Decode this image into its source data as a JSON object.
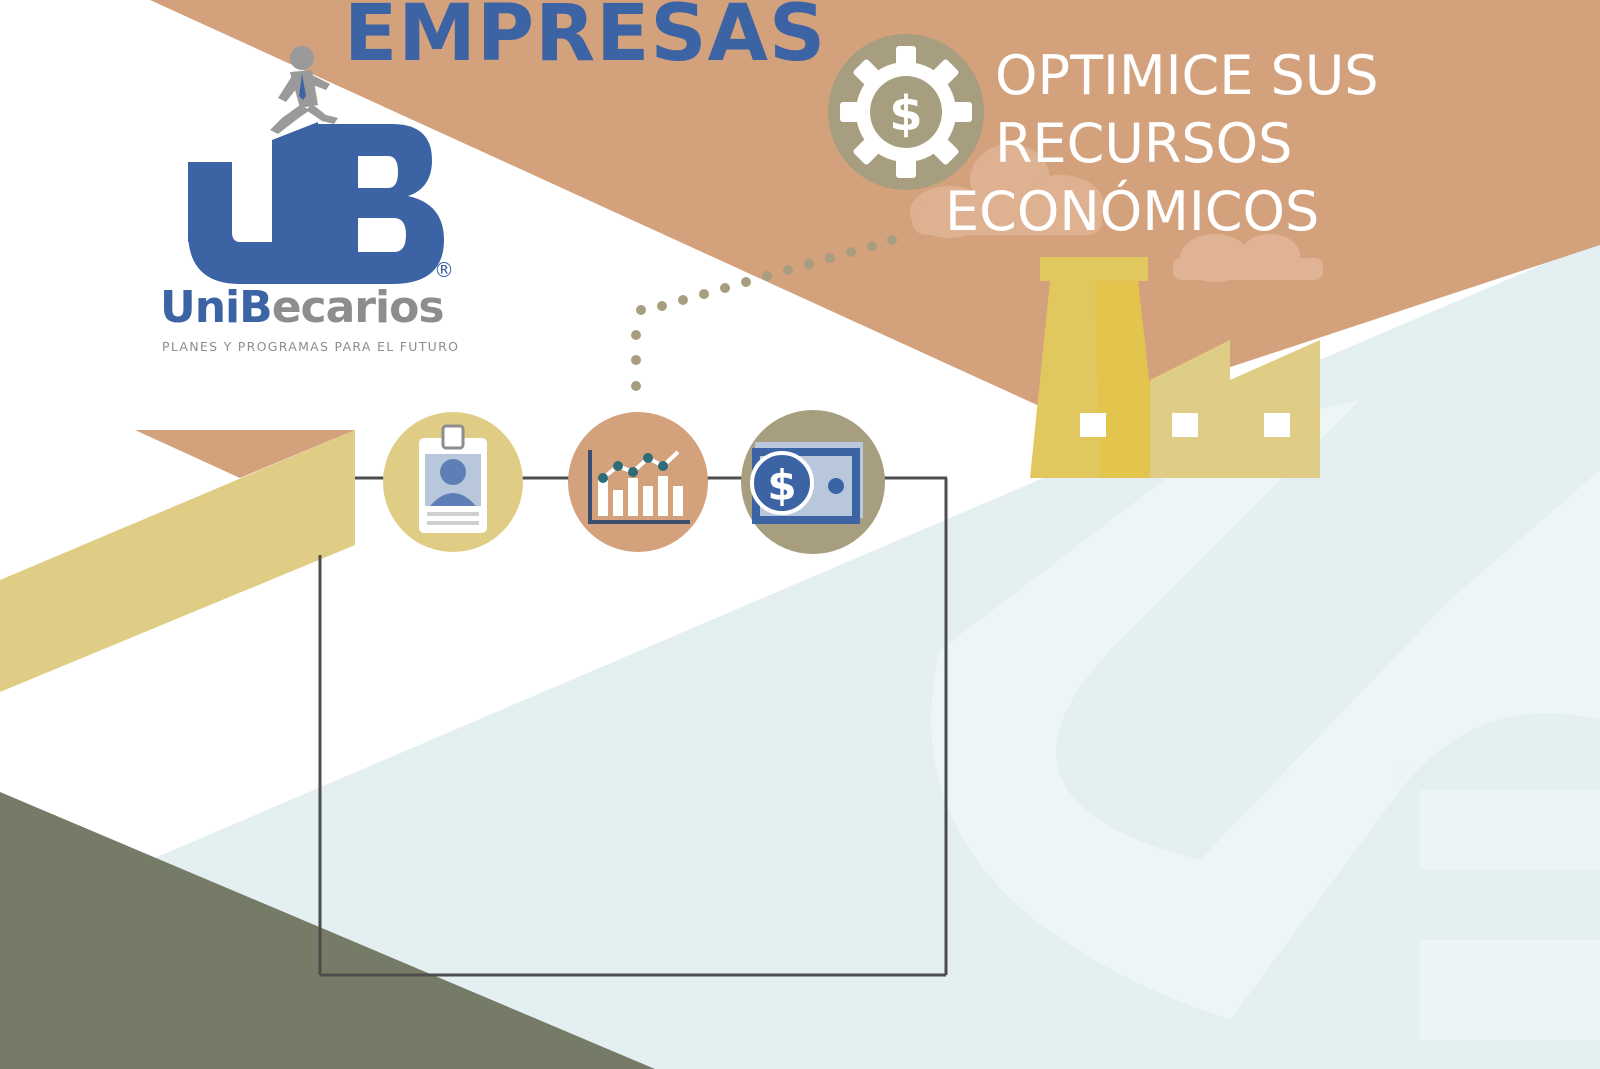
{
  "heading": "EMPRESAS",
  "tagline": {
    "line1": "OPTIMICE SUS",
    "line2": "RECURSOS",
    "line3": "ECONÓMICOS"
  },
  "brand": {
    "name_part1": "Uni",
    "name_part2": "B",
    "name_part3": "ecarios",
    "tagline": "PLANES Y PROGRAMAS PARA EL FUTURO",
    "registered": "®"
  },
  "colors": {
    "brand_blue": "#3c63a4",
    "terracotta": "#d3a27c",
    "mustard": "#e0cd85",
    "olive": "#767b68",
    "pale_blue": "#e4eff2",
    "khaki": "#a69e7f"
  },
  "icons": [
    "gear-dollar-icon",
    "id-badge-icon",
    "bar-chart-icon",
    "money-bill-icon",
    "factory-icon",
    "cloud-icon",
    "person-climbing-icon"
  ]
}
